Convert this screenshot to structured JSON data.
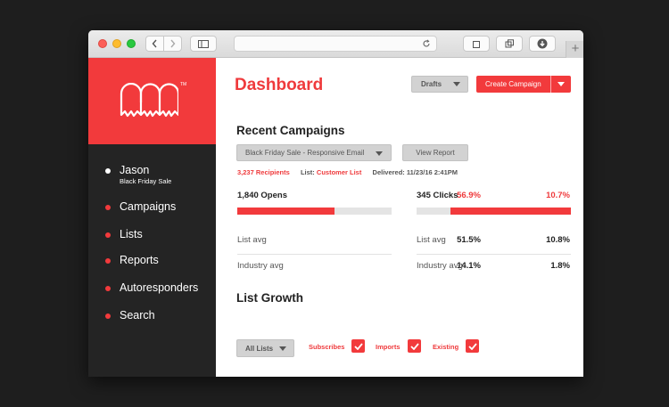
{
  "app": {
    "logo_mark": "TM"
  },
  "sidebar": {
    "user": {
      "name": "Jason",
      "subtitle": "Black Friday Sale"
    },
    "items": [
      {
        "label": "Campaigns"
      },
      {
        "label": "Lists"
      },
      {
        "label": "Reports"
      },
      {
        "label": "Autoresponders"
      },
      {
        "label": "Search"
      }
    ]
  },
  "header": {
    "title": "Dashboard",
    "drafts_label": "Drafts",
    "create_label": "Create Campaign"
  },
  "recent": {
    "heading": "Recent Campaigns",
    "campaign_select": "Black Friday Sale - Responsive Email",
    "view_report_label": "View Report",
    "recipients": "3,237 Recipients",
    "list_prefix": "List:",
    "list_name": "Customer List",
    "delivered": "Delivered: 11/23/16 2:41PM"
  },
  "stats": {
    "opens": {
      "label": "1,840 Opens",
      "pct": "56.9%",
      "fill_fraction": 0.63,
      "list_avg_label": "List avg",
      "list_avg": "51.5%",
      "industry_label": "Industry avg",
      "industry_avg": "14.1%"
    },
    "clicks": {
      "label": "345 Clicks",
      "pct": "10.7%",
      "fill_fraction": 0.78,
      "list_avg_label": "List avg",
      "list_avg": "10.8%",
      "industry_label": "Industry avg",
      "industry_avg": "1.8%"
    }
  },
  "growth": {
    "heading": "List Growth",
    "filter_label": "All Lists",
    "checks": [
      {
        "label": "Subscribes",
        "checked": true
      },
      {
        "label": "Imports",
        "checked": true
      },
      {
        "label": "Existing",
        "checked": true
      }
    ]
  },
  "colors": {
    "accent": "#f23a3c",
    "sidebar": "#242424",
    "backdrop": "#1e1e1e"
  },
  "icons": [
    "back-icon",
    "forward-icon",
    "sidebar-toggle-icon",
    "reload-icon",
    "share-icon",
    "tabs-icon",
    "download-icon",
    "new-tab-icon",
    "chevron-down-icon",
    "checkmark-icon",
    "ghost-logo-icon"
  ]
}
